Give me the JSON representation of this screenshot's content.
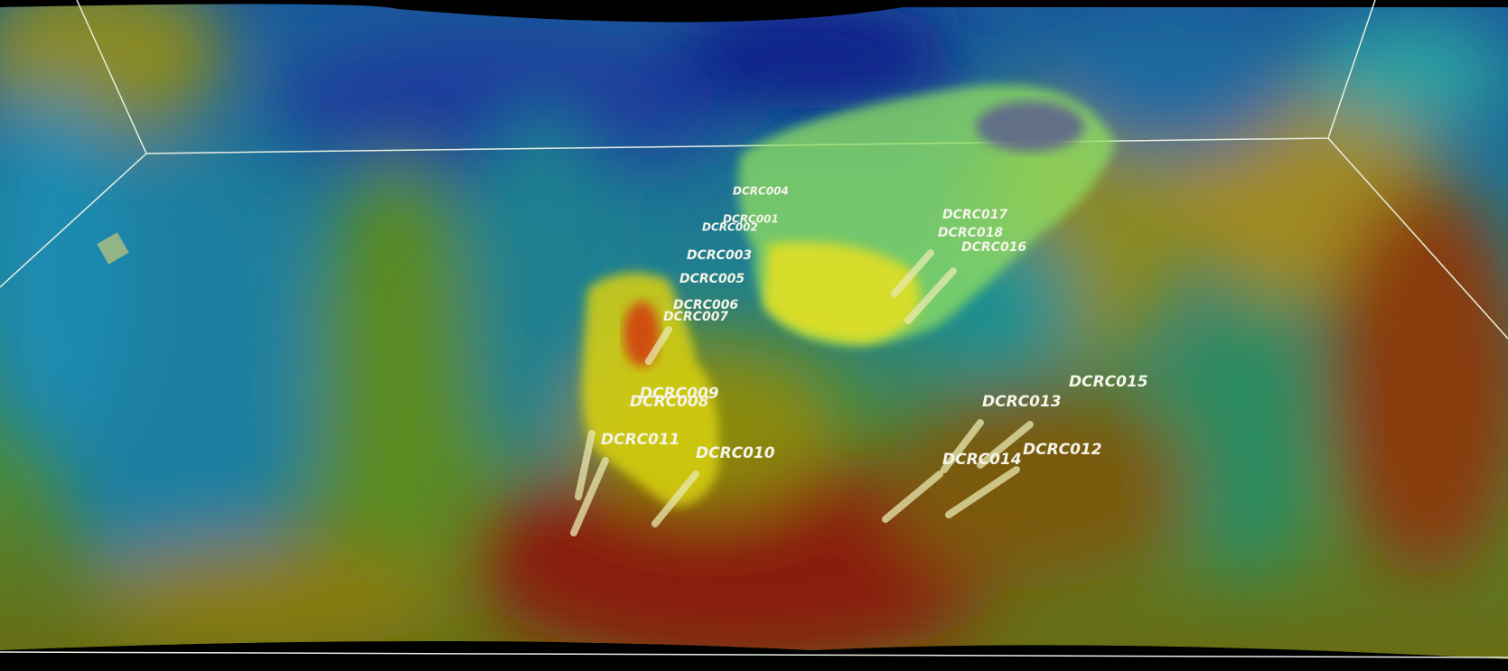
{
  "drill_holes": [
    {
      "label": "DCRC004"
    },
    {
      "label": "DCRC001"
    },
    {
      "label": "DCRC002"
    },
    {
      "label": "DCRC003"
    },
    {
      "label": "DCRC005"
    },
    {
      "label": "DCRC006"
    },
    {
      "label": "DCRC007"
    },
    {
      "label": "DCRC009"
    },
    {
      "label": "DCRC008"
    },
    {
      "label": "DCRC011"
    },
    {
      "label": "DCRC010"
    },
    {
      "label": "DCRC017"
    },
    {
      "label": "DCRC018"
    },
    {
      "label": "DCRC016"
    },
    {
      "label": "DCRC015"
    },
    {
      "label": "DCRC013"
    },
    {
      "label": "DCRC012"
    },
    {
      "label": "DCRC014"
    }
  ]
}
